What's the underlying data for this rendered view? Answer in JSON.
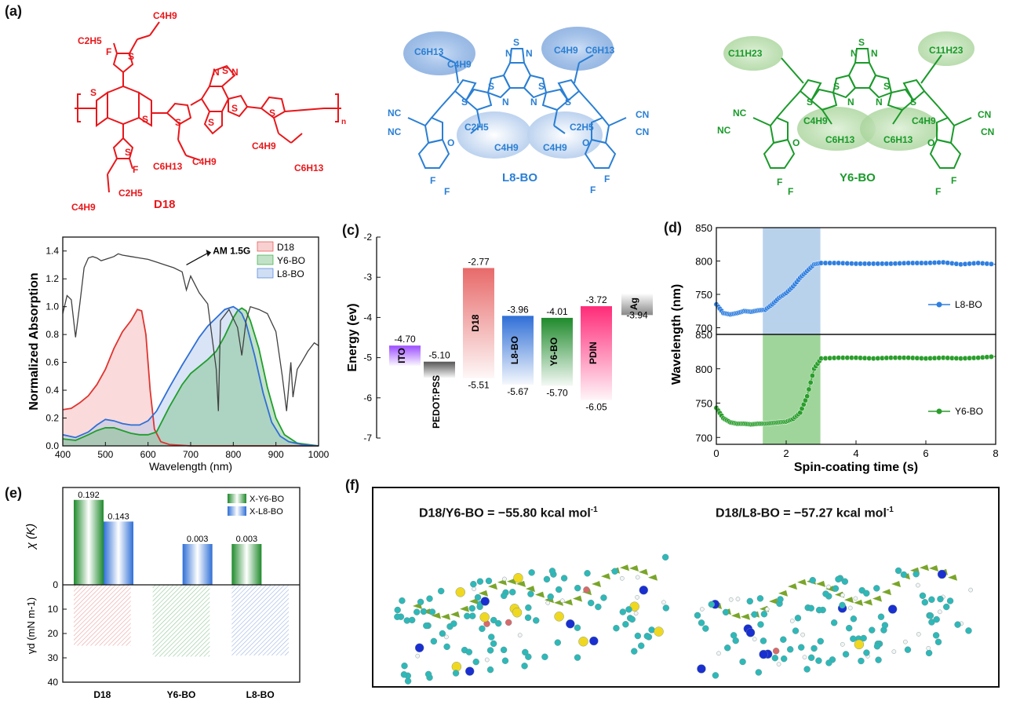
{
  "panels": {
    "a": {
      "label": "(a)",
      "molecules": [
        {
          "name": "D18",
          "color": "#e8171b",
          "substituents": [
            "C2H5",
            "C4H9",
            "F",
            "F",
            "C4H9",
            "C2H5",
            "C6H13",
            "C4H9",
            "C4H9",
            "C6H13",
            "n"
          ]
        },
        {
          "name": "L8-BO",
          "color": "#2a7fd4",
          "substituents": [
            "C6H13",
            "C4H9",
            "C4H9",
            "C6H13",
            "NC",
            "NC",
            "CN",
            "CN",
            "C2H5",
            "C4H9",
            "C4H9",
            "C2H5",
            "O",
            "O",
            "F",
            "F",
            "F",
            "F",
            "S",
            "N",
            "N",
            "S",
            "S"
          ]
        },
        {
          "name": "Y6-BO",
          "color": "#1a9a2a",
          "substituents": [
            "C11H23",
            "C11H23",
            "NC",
            "NC",
            "CN",
            "CN",
            "C4H9",
            "C6H13",
            "C6H13",
            "C4H9",
            "O",
            "O",
            "F",
            "F",
            "F",
            "F",
            "S",
            "N",
            "N",
            "S",
            "S"
          ]
        }
      ]
    },
    "b": {
      "label": "",
      "chart_data": {
        "type": "area",
        "xlabel": "Wavelength (nm)",
        "ylabel": "Normalized Absorption",
        "xlim": [
          400,
          1000
        ],
        "ylim": [
          0,
          1.5
        ],
        "xticks": [
          "400",
          "500",
          "600",
          "700",
          "800",
          "900",
          "1000"
        ],
        "yticks": [
          "0.0",
          "0.2",
          "0.4",
          "0.6",
          "0.8",
          "1.0",
          "1.2",
          "1.4"
        ],
        "annotation": "AM 1.5G",
        "legend": [
          "D18",
          "Y6-BO",
          "L8-BO"
        ],
        "legend_position": "top-right",
        "colors": {
          "D18": "#e0342f",
          "Y6-BO": "#1f9e2c",
          "L8-BO": "#2f6fd6",
          "AM": "#404040"
        },
        "series": [
          {
            "name": "D18",
            "x": [
              400,
              420,
              440,
              460,
              480,
              500,
              520,
              540,
              560,
              575,
              585,
              595,
              605,
              615,
              630,
              650,
              700,
              800,
              1000
            ],
            "y": [
              0.26,
              0.27,
              0.31,
              0.36,
              0.44,
              0.55,
              0.7,
              0.82,
              0.9,
              0.98,
              0.97,
              0.8,
              0.4,
              0.12,
              0.03,
              0.01,
              0.0,
              0.0,
              0.0
            ]
          },
          {
            "name": "Y6-BO",
            "x": [
              400,
              430,
              460,
              480,
              500,
              520,
              540,
              560,
              580,
              600,
              620,
              650,
              680,
              700,
              720,
              740,
              760,
              780,
              800,
              810,
              820,
              830,
              840,
              860,
              880,
              900,
              920,
              950,
              1000
            ],
            "y": [
              0.05,
              0.04,
              0.08,
              0.11,
              0.13,
              0.13,
              0.11,
              0.09,
              0.08,
              0.08,
              0.1,
              0.28,
              0.44,
              0.52,
              0.57,
              0.62,
              0.68,
              0.79,
              0.92,
              0.97,
              0.99,
              0.97,
              0.9,
              0.7,
              0.42,
              0.2,
              0.08,
              0.02,
              0.0
            ]
          },
          {
            "name": "L8-BO",
            "x": [
              400,
              430,
              460,
              480,
              500,
              520,
              540,
              560,
              580,
              600,
              620,
              650,
              680,
              700,
              720,
              740,
              760,
              780,
              800,
              810,
              820,
              830,
              850,
              870,
              890,
              910,
              930,
              960,
              1000
            ],
            "y": [
              0.08,
              0.06,
              0.1,
              0.15,
              0.19,
              0.18,
              0.16,
              0.15,
              0.15,
              0.18,
              0.25,
              0.42,
              0.58,
              0.68,
              0.78,
              0.86,
              0.92,
              0.98,
              1.0,
              0.98,
              0.95,
              0.88,
              0.65,
              0.38,
              0.17,
              0.07,
              0.03,
              0.01,
              0.0
            ]
          },
          {
            "name": "AM 1.5G",
            "x": [
              400,
              410,
              420,
              430,
              440,
              450,
              460,
              470,
              480,
              490,
              500,
              510,
              520,
              530,
              540,
              560,
              580,
              600,
              620,
              640,
              660,
              680,
              690,
              700,
              720,
              740,
              760,
              765,
              770,
              790,
              810,
              820,
              830,
              840,
              860,
              880,
              900,
              915,
              925,
              935,
              940,
              950,
              960,
              975,
              990,
              1000
            ],
            "y": [
              0.95,
              1.08,
              1.05,
              0.78,
              1.02,
              1.28,
              1.35,
              1.36,
              1.35,
              1.33,
              1.34,
              1.35,
              1.36,
              1.38,
              1.37,
              1.36,
              1.35,
              1.34,
              1.32,
              1.3,
              1.28,
              1.25,
              1.12,
              1.22,
              1.1,
              1.02,
              0.55,
              0.25,
              0.9,
              0.98,
              0.85,
              0.65,
              0.9,
              1.0,
              0.98,
              0.95,
              0.82,
              0.5,
              0.25,
              0.6,
              0.35,
              0.55,
              0.6,
              0.68,
              0.74,
              0.72
            ]
          }
        ]
      }
    },
    "c": {
      "label": "(c)",
      "chart_data": {
        "type": "bar",
        "ylabel": "Energy (ev)",
        "ylim": [
          -7,
          -2
        ],
        "yticks": [
          "-2",
          "-3",
          "-4",
          "-5",
          "-6",
          "-7"
        ],
        "levels": [
          {
            "name": "ITO",
            "top": -4.7,
            "bottom": -5.2,
            "top_label": "-4.70",
            "bottom_label": "",
            "color": "#9b4dff"
          },
          {
            "name": "PEDOT:PSS",
            "top": -5.1,
            "bottom": -5.5,
            "top_label": "-5.10",
            "bottom_label": "",
            "color": "#555555"
          },
          {
            "name": "D18",
            "top": -2.77,
            "bottom": -5.51,
            "top_label": "-2.77",
            "bottom_label": "-5.51",
            "color": "#e86a6a"
          },
          {
            "name": "L8-BO",
            "top": -3.96,
            "bottom": -5.67,
            "top_label": "-3.96",
            "bottom_label": "-5.67",
            "color": "#2f6fd6"
          },
          {
            "name": "Y6-BO",
            "top": -4.01,
            "bottom": -5.7,
            "top_label": "-4.01",
            "bottom_label": "-5.70",
            "color": "#1f8a2c"
          },
          {
            "name": "PDIN",
            "top": -3.72,
            "bottom": -6.05,
            "top_label": "-3.72",
            "bottom_label": "-6.05",
            "color": "#ff2b78"
          },
          {
            "name": "Ag",
            "top": -3.94,
            "bottom": -3.4,
            "top_label": "",
            "bottom_label": "-3.94",
            "color": "#888888"
          }
        ]
      }
    },
    "d": {
      "label": "(d)",
      "chart_data": {
        "type": "scatter",
        "xlabel": "Spin-coating time (s)",
        "ylabel": "Wavelength (nm)",
        "xlim": [
          0,
          8
        ],
        "ylim": [
          690,
          850
        ],
        "xticks": [
          "0",
          "2",
          "4",
          "6",
          "8"
        ],
        "yticks_top": [
          "700",
          "750",
          "800",
          "850"
        ],
        "yticks_bottom": [
          "700",
          "750",
          "800",
          "850"
        ],
        "shaded_region": [
          1.33,
          2.98
        ],
        "series": [
          {
            "name": "L8-BO",
            "color": "#2f7fe0",
            "x": [
              0,
              0.2,
              0.4,
              0.6,
              0.8,
              1.0,
              1.2,
              1.4,
              1.6,
              1.8,
              2.0,
              2.2,
              2.4,
              2.6,
              2.8,
              3.0,
              3.5,
              4.0,
              4.5,
              5.0,
              5.5,
              6.0,
              6.5,
              7.0,
              7.5,
              8.0
            ],
            "y": [
              735,
              722,
              720,
              722,
              725,
              724,
              726,
              727,
              735,
              745,
              752,
              762,
              775,
              785,
              795,
              797,
              797,
              796,
              796,
              796,
              797,
              797,
              798,
              795,
              797,
              795
            ]
          },
          {
            "name": "Y6-BO",
            "color": "#2a9e2c",
            "x": [
              0,
              0.2,
              0.4,
              0.6,
              0.8,
              1.0,
              1.2,
              1.4,
              1.6,
              1.8,
              2.0,
              2.2,
              2.4,
              2.6,
              2.8,
              3.0,
              3.5,
              4.0,
              4.5,
              5.0,
              5.5,
              6.0,
              6.5,
              7.0,
              7.5,
              8.0
            ],
            "y": [
              743,
              728,
              722,
              720,
              720,
              719,
              720,
              720,
              721,
              722,
              723,
              727,
              736,
              760,
              800,
              815,
              816,
              816,
              815,
              816,
              816,
              815,
              816,
              815,
              816,
              818
            ]
          }
        ]
      }
    },
    "e": {
      "label": "(e)",
      "chart_data": {
        "type": "bar",
        "categories": [
          "D18",
          "Y6-BO",
          "L8-BO"
        ],
        "ylabel_top": "χ (K)",
        "ylabel_bottom": "γd (mN m-1)",
        "ylim_bottom": [
          0,
          40
        ],
        "yticks_bottom": [
          "0",
          "10",
          "20",
          "30",
          "40"
        ],
        "legend": [
          "X-Y6-BO",
          "X-L8-BO"
        ],
        "legend_position": "top-right",
        "series": [
          {
            "name": "X-Y6-BO",
            "color": "#1f8a2c",
            "values": [
              0.192,
              null,
              0.003
            ],
            "labels": [
              "0.192",
              "",
              "0.003"
            ]
          },
          {
            "name": "X-L8-BO",
            "color": "#2f6fd6",
            "values": [
              0.143,
              0.003,
              null
            ],
            "labels": [
              "0.143",
              "0.003",
              ""
            ]
          }
        ],
        "gamma_d": {
          "values": [
            25,
            29.5,
            29
          ],
          "colors": [
            "#e06060",
            "#44a050",
            "#5580d0"
          ]
        }
      }
    },
    "f": {
      "label": "(f)",
      "labels": [
        "D18/Y6-BO = −55.80 kcal mol",
        "D18/L8-BO = −57.27 kcal mol"
      ],
      "superscript": "-1"
    }
  }
}
